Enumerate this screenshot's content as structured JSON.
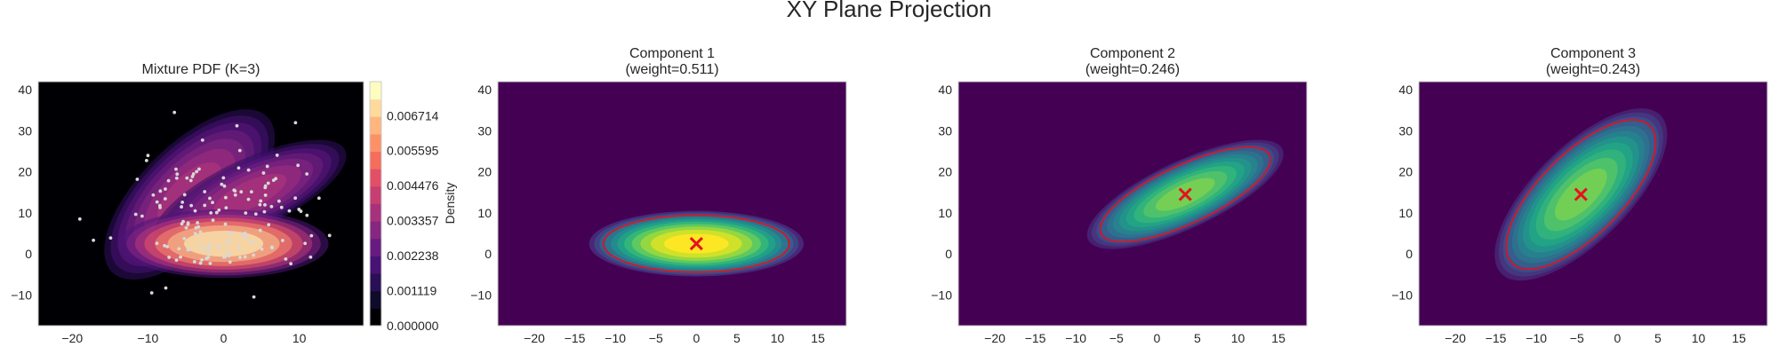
{
  "figure": {
    "title": "XY Plane Projection",
    "colors": {
      "background": "#ffffff",
      "axes_edge": "#cccccc",
      "tick_label": "#262626",
      "ellipse": "#e8101e",
      "mean_marker": "#e8101e",
      "points": "#d8d8d8",
      "viridis_low": "#440154",
      "viridis_high": "#fde725"
    }
  },
  "chart_data": [
    {
      "type": "heatmap",
      "title": "Mixture PDF (K=3)",
      "xlabel": "",
      "ylabel": "",
      "xlim": [
        -24.5,
        18.5
      ],
      "ylim": [
        -17.5,
        42
      ],
      "xticks": [
        -20,
        -10,
        0,
        10
      ],
      "yticks": [
        -10,
        0,
        10,
        20,
        30,
        40
      ],
      "colormap": "magma",
      "colorbar": {
        "label": "Density",
        "range": [
          0,
          0.0078
        ],
        "ticks": [
          "0.000000",
          "0.001119",
          "0.002238",
          "0.003357",
          "0.004476",
          "0.005595",
          "0.006714"
        ],
        "levels": 14
      },
      "components": [
        {
          "weight": 0.511,
          "mean": [
            0,
            2.5
          ],
          "sigma_major": 6.3,
          "sigma_minor": 3.8,
          "angle_deg": 0
        },
        {
          "weight": 0.246,
          "mean": [
            3.5,
            14.5
          ],
          "sigma_major": 6.3,
          "sigma_minor": 3.9,
          "angle_deg": -25
        },
        {
          "weight": 0.243,
          "mean": [
            -4.5,
            14.5
          ],
          "sigma_major": 6.6,
          "sigma_minor": 5.5,
          "angle_deg": -45
        }
      ],
      "scatter": {
        "count": 150,
        "outliers": [
          [
            -19,
            8.5
          ],
          [
            -6.5,
            34.5
          ],
          [
            9.5,
            32
          ],
          [
            14,
            4.5
          ],
          [
            -9.5,
            -9.5
          ],
          [
            4,
            -10.5
          ],
          [
            11,
            19.5
          ],
          [
            -10,
            24
          ]
        ]
      }
    },
    {
      "type": "heatmap",
      "title": "Component 1\n(weight=0.511)",
      "xlabel": "",
      "ylabel": "",
      "xlim": [
        -24.5,
        18.5
      ],
      "ylim": [
        -17.5,
        42
      ],
      "xticks": [
        -20,
        -15,
        -10,
        -5,
        0,
        5,
        10,
        15
      ],
      "yticks": [
        -10,
        0,
        10,
        20,
        30,
        40
      ],
      "colormap": "viridis",
      "weight": 0.511,
      "mean": [
        0,
        2.5
      ],
      "sigma_major": 6.3,
      "sigma_minor": 3.8,
      "angle_deg": 0,
      "ellipse_scale": 1.82,
      "marker": "x"
    },
    {
      "type": "heatmap",
      "title": "Component 2\n(weight=0.246)",
      "xlabel": "",
      "ylabel": "",
      "xlim": [
        -24.5,
        18.5
      ],
      "ylim": [
        -17.5,
        42
      ],
      "xticks": [
        -20,
        -15,
        -10,
        -5,
        0,
        5,
        10,
        15
      ],
      "yticks": [
        -10,
        0,
        10,
        20,
        30,
        40
      ],
      "colormap": "viridis",
      "weight": 0.246,
      "mean": [
        3.5,
        14.5
      ],
      "sigma_major": 6.3,
      "sigma_minor": 3.9,
      "angle_deg": -25,
      "ellipse_scale": 1.82,
      "marker": "x"
    },
    {
      "type": "heatmap",
      "title": "Component 3\n(weight=0.243)",
      "xlabel": "",
      "ylabel": "",
      "xlim": [
        -24.5,
        18.5
      ],
      "ylim": [
        -17.5,
        42
      ],
      "xticks": [
        -20,
        -15,
        -10,
        -5,
        0,
        5,
        10,
        15
      ],
      "yticks": [
        -10,
        0,
        10,
        20,
        30,
        40
      ],
      "colormap": "viridis",
      "weight": 0.243,
      "mean": [
        -4.5,
        14.5
      ],
      "sigma_major": 6.6,
      "sigma_minor": 5.5,
      "angle_deg": -45,
      "ellipse_scale": 1.82,
      "marker": "x"
    }
  ]
}
